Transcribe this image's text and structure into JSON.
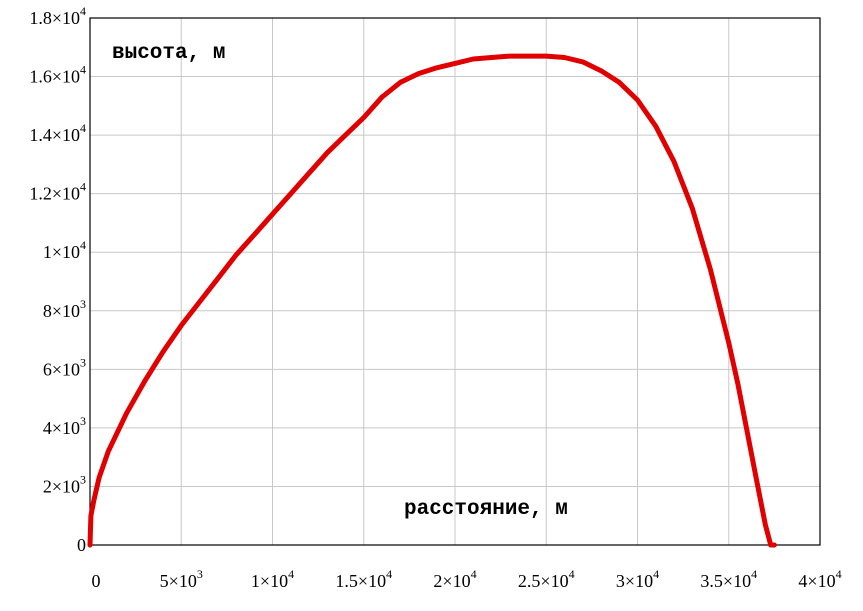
{
  "chart_data": {
    "type": "line",
    "title": "",
    "xlabel": "",
    "ylabel": "",
    "annotations": {
      "y_label_text": "высота, м",
      "x_label_text": "расстояние, м"
    },
    "xlim": [
      0,
      40000
    ],
    "ylim": [
      0,
      18000
    ],
    "grid": true,
    "legend": "none",
    "x_ticks": [
      {
        "value": 0,
        "mant": "0",
        "exp": ""
      },
      {
        "value": 5000,
        "mant": "5×10",
        "exp": "3"
      },
      {
        "value": 10000,
        "mant": "1×10",
        "exp": "4"
      },
      {
        "value": 15000,
        "mant": "1.5×10",
        "exp": "4"
      },
      {
        "value": 20000,
        "mant": "2×10",
        "exp": "4"
      },
      {
        "value": 25000,
        "mant": "2.5×10",
        "exp": "4"
      },
      {
        "value": 30000,
        "mant": "3×10",
        "exp": "4"
      },
      {
        "value": 35000,
        "mant": "3.5×10",
        "exp": "4"
      },
      {
        "value": 40000,
        "mant": "4×10",
        "exp": "4"
      }
    ],
    "y_ticks": [
      {
        "value": 0,
        "mant": "0",
        "exp": ""
      },
      {
        "value": 2000,
        "mant": "2×10",
        "exp": "3"
      },
      {
        "value": 4000,
        "mant": "4×10",
        "exp": "3"
      },
      {
        "value": 6000,
        "mant": "6×10",
        "exp": "3"
      },
      {
        "value": 8000,
        "mant": "8×10",
        "exp": "3"
      },
      {
        "value": 10000,
        "mant": "1×10",
        "exp": "4"
      },
      {
        "value": 12000,
        "mant": "1.2×10",
        "exp": "4"
      },
      {
        "value": 14000,
        "mant": "1.4×10",
        "exp": "4"
      },
      {
        "value": 16000,
        "mant": "1.6×10",
        "exp": "4"
      },
      {
        "value": 18000,
        "mant": "1.8×10",
        "exp": "4"
      }
    ],
    "series": [
      {
        "color": "#e00000",
        "x": [
          0,
          50,
          200,
          500,
          1000,
          2000,
          3000,
          4000,
          5000,
          6000,
          7000,
          8000,
          9000,
          10000,
          11000,
          12000,
          13000,
          14000,
          15000,
          16000,
          17000,
          18000,
          19000,
          20000,
          21000,
          22000,
          23000,
          24000,
          25000,
          26000,
          27000,
          28000,
          29000,
          30000,
          31000,
          32000,
          33000,
          34000,
          35000,
          35500,
          36000,
          36500,
          37000,
          37300,
          37500
        ],
        "y": [
          0,
          1000,
          1500,
          2300,
          3200,
          4500,
          5600,
          6600,
          7500,
          8300,
          9100,
          9900,
          10600,
          11300,
          12000,
          12700,
          13400,
          14000,
          14600,
          15300,
          15800,
          16100,
          16300,
          16450,
          16600,
          16650,
          16700,
          16700,
          16700,
          16650,
          16500,
          16200,
          15800,
          15200,
          14300,
          13100,
          11500,
          9400,
          6900,
          5500,
          3900,
          2300,
          700,
          0,
          0
        ]
      }
    ]
  }
}
